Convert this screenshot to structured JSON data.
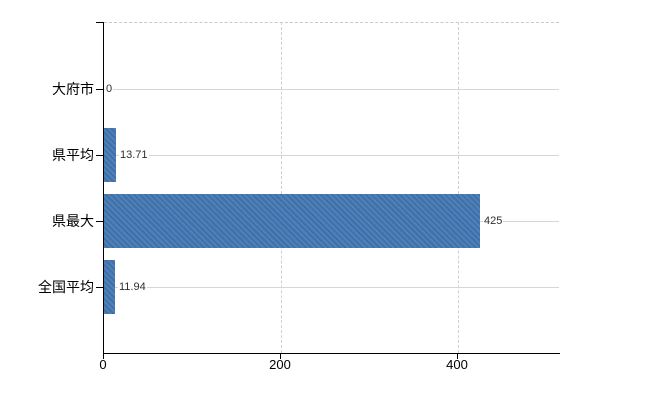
{
  "chart_data": {
    "type": "bar",
    "orientation": "horizontal",
    "categories": [
      "大府市",
      "県平均",
      "県最大",
      "全国平均"
    ],
    "values": [
      0,
      13.71,
      425,
      11.94
    ],
    "value_labels": [
      "0",
      "13.71",
      "425",
      "11.94"
    ],
    "x_ticks": [
      0,
      200,
      400
    ],
    "x_tick_labels": [
      "0",
      "200",
      "400"
    ],
    "xlim": [
      0,
      514
    ],
    "grid": {
      "horizontal": "solid",
      "vertical": "dashed",
      "plot_top_border": "dashed"
    },
    "legend": "none",
    "colors": {
      "bar": "#4276b2",
      "horizontal_gridline": "#d6d6d6",
      "vertical_gridline": "#d0d0d0",
      "plot_top_border": "#c9c9c9",
      "axis": "#000000",
      "category_text": "#000000",
      "value_label_text": "#2e2e2e",
      "background": "#ffffff"
    }
  }
}
